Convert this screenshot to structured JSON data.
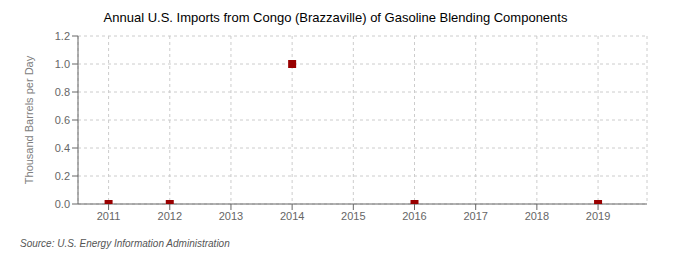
{
  "chart_data": {
    "type": "scatter",
    "title": "Annual U.S. Imports from Congo (Brazzaville) of Gasoline Blending Components",
    "ylabel": "Thousand Barrels per Day",
    "source": "Source: U.S. Energy Information Administration",
    "x": [
      2011,
      2012,
      2014,
      2016,
      2019
    ],
    "values": [
      0.0,
      0.0,
      1.0,
      0.0,
      0.0
    ],
    "color": "#990000",
    "marker": "square",
    "xlim": [
      2010.5,
      2019.8
    ],
    "xticks": [
      2011,
      2012,
      2013,
      2014,
      2015,
      2016,
      2017,
      2018,
      2019
    ],
    "ylim": [
      0.0,
      1.2
    ],
    "yticks": [
      {
        "value": 0.0,
        "label": "0.0"
      },
      {
        "value": 0.2,
        "label": "0.2"
      },
      {
        "value": 0.4,
        "label": "0.4"
      },
      {
        "value": 0.6,
        "label": "0.6"
      },
      {
        "value": 0.8,
        "label": "0.8"
      },
      {
        "value": 1.0,
        "label": "1.0"
      },
      {
        "value": 1.2,
        "label": "1.2"
      }
    ],
    "grid": true
  }
}
